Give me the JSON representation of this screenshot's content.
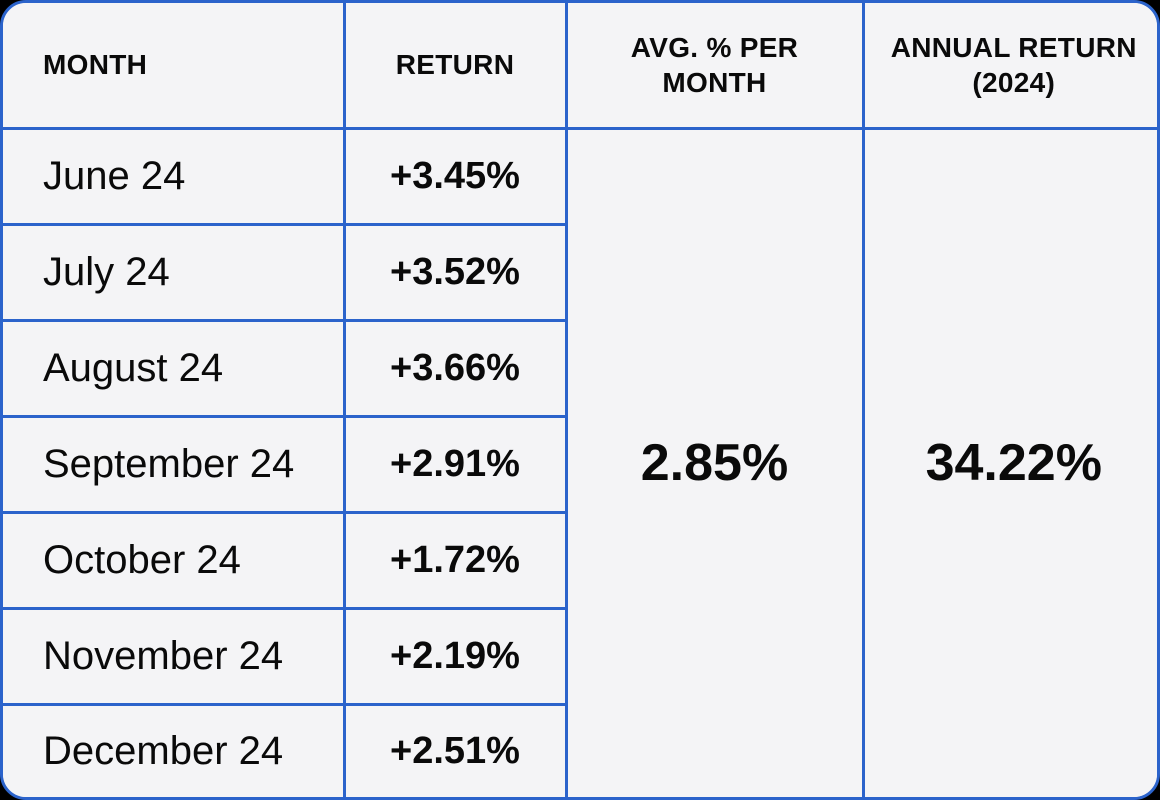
{
  "chart_data": {
    "type": "table",
    "columns": [
      "MONTH",
      "RETURN",
      "AVG. % PER MONTH",
      "ANNUAL RETURN (2024)"
    ],
    "rows": [
      {
        "month": "June 24",
        "return": "+3.45%"
      },
      {
        "month": "July 24",
        "return": "+3.52%"
      },
      {
        "month": "August 24",
        "return": "+3.66%"
      },
      {
        "month": "September 24",
        "return": "+2.91%"
      },
      {
        "month": "October 24",
        "return": "+1.72%"
      },
      {
        "month": "November 24",
        "return": "+2.19%"
      },
      {
        "month": "December 24",
        "return": "+2.51%"
      }
    ],
    "merged": {
      "avg_per_month": "2.85%",
      "annual_return_2024": "34.22%"
    },
    "numeric": {
      "monthly_returns_pct": [
        3.45,
        3.52,
        3.66,
        2.91,
        1.72,
        2.19,
        2.51
      ],
      "avg_pct_per_month": 2.85,
      "annual_return_2024_pct": 34.22
    }
  },
  "colors": {
    "border": "#2b63cb",
    "cell_bg": "#f4f4f6",
    "text": "#0a0a0a",
    "page_bg": "#000000"
  }
}
